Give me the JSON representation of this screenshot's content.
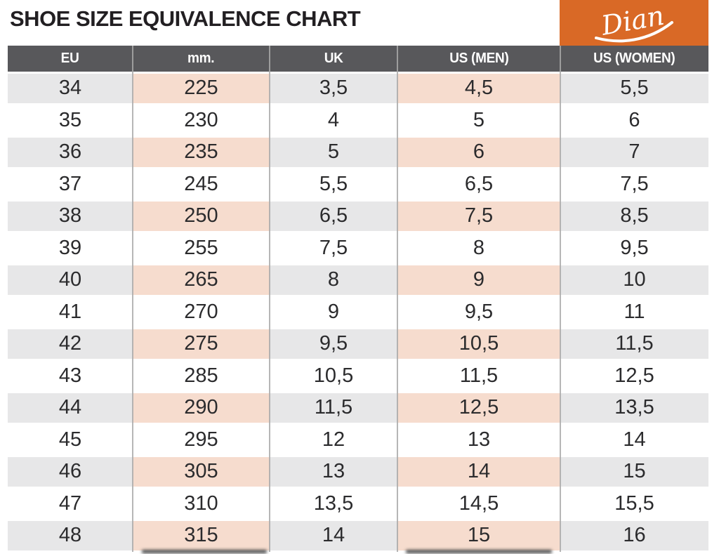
{
  "page": {
    "title": "SHOE SIZE EQUIVALENCE CHART"
  },
  "brand": {
    "name": "Dian",
    "box_color": "#D96926"
  },
  "colors": {
    "header_bg": "#58585B",
    "stripe_gray": "#E7E7E8",
    "stripe_pink": "#F6DCCE",
    "body_text": "#2B2B2D",
    "title_text": "#221F22",
    "header_text": "#FFFFFF"
  },
  "table": {
    "highlight_column_indexes": [
      1,
      3
    ],
    "striped_row_pattern": "odd-rows-colored-starting-first"
  },
  "chart_data": {
    "type": "table",
    "title": "SHOE SIZE EQUIVALENCE CHART",
    "columns": [
      "EU",
      "mm.",
      "UK",
      "US (MEN)",
      "US (WOMEN)"
    ],
    "rows": [
      [
        "34",
        "225",
        "3,5",
        "4,5",
        "5,5"
      ],
      [
        "35",
        "230",
        "4",
        "5",
        "6"
      ],
      [
        "36",
        "235",
        "5",
        "6",
        "7"
      ],
      [
        "37",
        "245",
        "5,5",
        "6,5",
        "7,5"
      ],
      [
        "38",
        "250",
        "6,5",
        "7,5",
        "8,5"
      ],
      [
        "39",
        "255",
        "7,5",
        "8",
        "9,5"
      ],
      [
        "40",
        "265",
        "8",
        "9",
        "10"
      ],
      [
        "41",
        "270",
        "9",
        "9,5",
        "11"
      ],
      [
        "42",
        "275",
        "9,5",
        "10,5",
        "11,5"
      ],
      [
        "43",
        "285",
        "10,5",
        "11,5",
        "12,5"
      ],
      [
        "44",
        "290",
        "11,5",
        "12,5",
        "13,5"
      ],
      [
        "45",
        "295",
        "12",
        "13",
        "14"
      ],
      [
        "46",
        "305",
        "13",
        "14",
        "15"
      ],
      [
        "47",
        "310",
        "13,5",
        "14,5",
        "15,5"
      ],
      [
        "48",
        "315",
        "14",
        "15",
        "16"
      ]
    ]
  }
}
